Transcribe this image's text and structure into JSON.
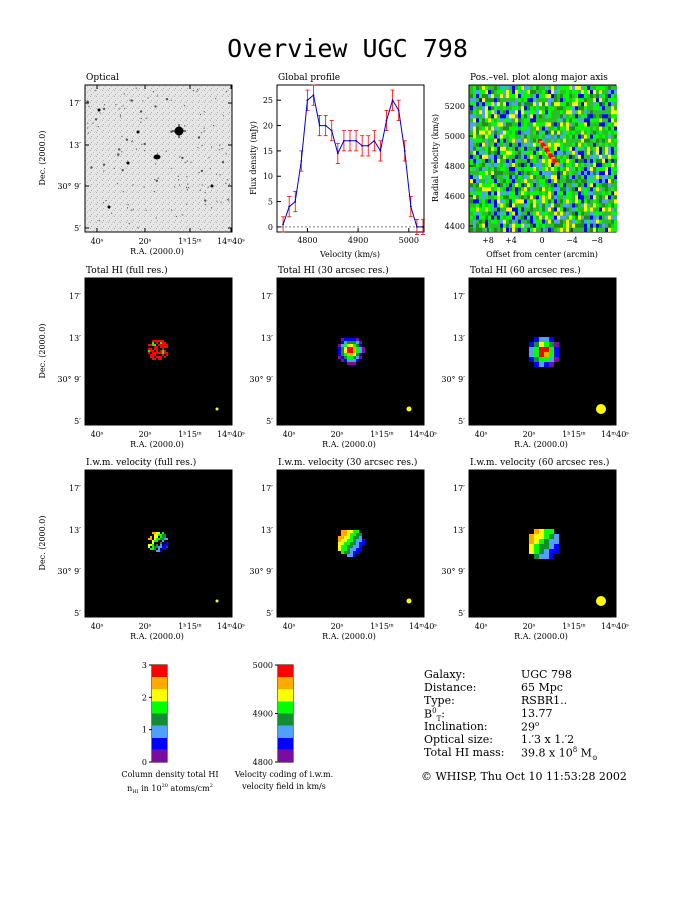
{
  "page": {
    "title": "Overview UGC 798"
  },
  "panels": {
    "optical": {
      "title": "Optical"
    },
    "global_profile": {
      "title": "Global profile"
    },
    "pv": {
      "title": "Pos.–vel. plot along major axis"
    },
    "hi_full": {
      "title": "Total HI (full res.)"
    },
    "hi_30": {
      "title": "Total HI (30 arcsec res.)"
    },
    "hi_60": {
      "title": "Total HI (60 arcsec res.)"
    },
    "vel_full": {
      "title": "I.w.m. velocity (full res.)"
    },
    "vel_30": {
      "title": "I.w.m. velocity (30 arcsec res.)"
    },
    "vel_60": {
      "title": "I.w.m. velocity (60 arcsec res.)"
    }
  },
  "axes": {
    "ra_label": "R.A. (2000.0)",
    "dec_label": "Dec. (2000.0)",
    "ra_ticks": [
      "40ˢ",
      "20ˢ",
      "1ʰ15ᵐ",
      "14ᵐ40ˢ"
    ],
    "dec_ticks": [
      "17′",
      "13′",
      "30° 9′",
      "5′"
    ],
    "velocity_label": "Velocity (km/s)",
    "flux_label": "Flux density (mJy)",
    "offset_label": "Offset from center (arcmin)",
    "radvel_label": "Radial velocity (km/s)"
  },
  "chart_data": [
    {
      "type": "line",
      "name": "global_profile",
      "xlabel": "Velocity (km/s)",
      "ylabel": "Flux density (mJy)",
      "xlim": [
        4740,
        5030
      ],
      "ylim": [
        -1,
        28
      ],
      "xticks": [
        4800,
        4900,
        5000
      ],
      "yticks": [
        0,
        5,
        10,
        15,
        20,
        25
      ],
      "x": [
        4752,
        4764,
        4776,
        4788,
        4800,
        4812,
        4824,
        4836,
        4848,
        4860,
        4872,
        4884,
        4896,
        4908,
        4920,
        4932,
        4944,
        4956,
        4968,
        4980,
        4992,
        5004,
        5016,
        5028
      ],
      "y": [
        0.5,
        4,
        5,
        13,
        25,
        26,
        20,
        20,
        19,
        14.5,
        17,
        17,
        17,
        16,
        16,
        17,
        15,
        21,
        25,
        23,
        15,
        4,
        0,
        0
      ],
      "errors": [
        1.5,
        2,
        2,
        2,
        2,
        2,
        2,
        2,
        2,
        2,
        2,
        2,
        2,
        2,
        2,
        2,
        2,
        2,
        2,
        2,
        2,
        2,
        1.5,
        1.5
      ]
    },
    {
      "type": "heatmap",
      "name": "position_velocity",
      "xlabel": "Offset from center (arcmin)",
      "ylabel": "Radial velocity (km/s)",
      "xticks": [
        "+8",
        "+4",
        "0",
        "−4",
        "−8"
      ],
      "yticks": [
        4400,
        4600,
        4800,
        5000,
        5200
      ],
      "ylim": [
        4360,
        5340
      ]
    },
    {
      "type": "heatmap",
      "name": "column_density_colorbar",
      "ticks": [
        "0",
        "1",
        "2",
        "3"
      ],
      "colors": [
        "#7a0da0",
        "#0000ff",
        "#4fa0ff",
        "#0f8f2f",
        "#00ff00",
        "#ffff00",
        "#ffaa00",
        "#ff0000"
      ],
      "label_line1": "Column density total HI",
      "label_line2": "n",
      "label_line2_sub": "HI",
      "label_line2_rest": " in 10",
      "label_line2_sup": "20",
      "label_line2_end": " atoms/cm",
      "label_line2_sup2": "2"
    },
    {
      "type": "heatmap",
      "name": "velocity_colorbar",
      "ticks": [
        "4800",
        "4900",
        "5000"
      ],
      "colors": [
        "#7a0da0",
        "#0000ff",
        "#4fa0ff",
        "#0f8f2f",
        "#00ff00",
        "#ffff00",
        "#ffaa00",
        "#ff0000"
      ],
      "label_line1": "Velocity coding of i.w.m.",
      "label_line2": "velocity field in km/s"
    }
  ],
  "galaxy_info": {
    "rows": [
      {
        "label": "Galaxy:",
        "value": "UGC 798"
      },
      {
        "label": "Distance:",
        "value": "65 Mpc"
      },
      {
        "label": "Type:",
        "value": "RSBR1.."
      },
      {
        "label": "B",
        "label_sup": "0",
        "label_sub": "T",
        "label_end": ":",
        "value": "13.77"
      },
      {
        "label": "Inclination:",
        "value": "29",
        "value_sup": "o"
      },
      {
        "label": "Optical size:",
        "value": "1.′3 x 1.′2"
      },
      {
        "label": "Total HI mass:",
        "value": "39.8 x 10",
        "value_sup": "8",
        "value_end": " M",
        "value_sub": "⊙"
      }
    ],
    "footer": "© WHISP, Thu Oct 10 11:53:28 2002"
  },
  "colors": {
    "beam": "#ffff00",
    "profile_line": "#0000cc",
    "profile_error": "#ff0000",
    "map_bg": "#000000"
  }
}
